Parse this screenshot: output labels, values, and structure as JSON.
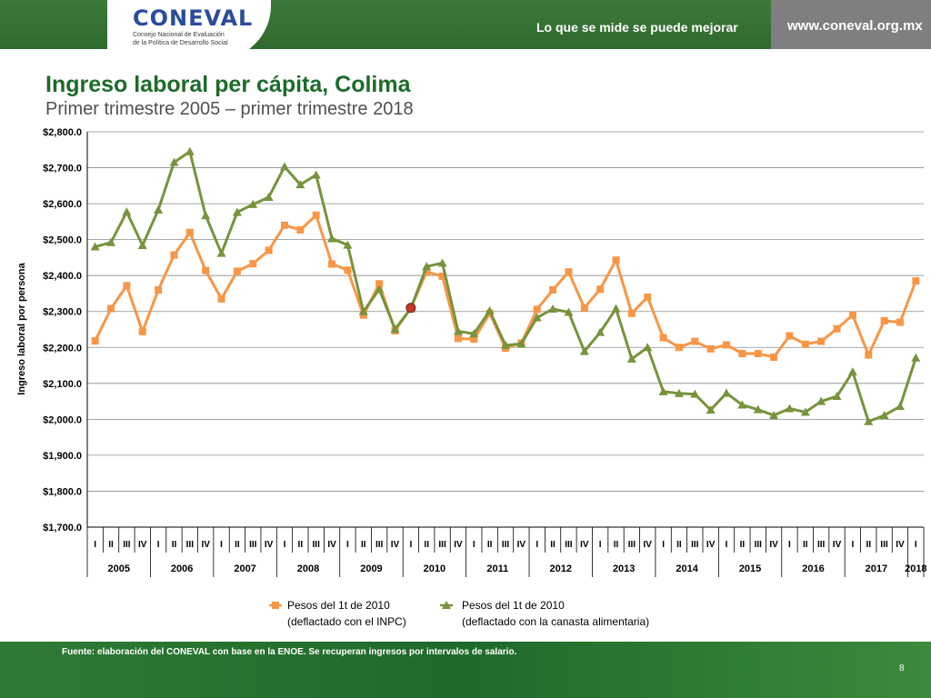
{
  "header": {
    "logo_text": "CONEVAL",
    "logo_sub1": "Consejo Nacional de Evaluación",
    "logo_sub2": "de la Política de Desarrollo Social",
    "tagline": "Lo que se mide se puede mejorar",
    "website": "www.coneval.org.mx"
  },
  "slide": {
    "source": "Fuente: elaboración del CONEVAL con base en la ENOE. Se recuperan ingresos por intervalos de salario.",
    "page_number": "8"
  },
  "colors": {
    "series_inpc": "#f79646",
    "series_canasta": "#77933c",
    "highlight_point": "#c0392b",
    "header_green": "#2f6a2e",
    "title_green": "#1d6b2a"
  },
  "chart_data": {
    "type": "line",
    "title": "Ingreso laboral per cápita, Colima",
    "subtitle": "Primer trimestre 2005 – primer trimestre 2018",
    "ylabel": "Ingreso laboral por persona",
    "ylim": [
      1700,
      2800
    ],
    "yticks": [
      "$1,700.0",
      "$1,800.0",
      "$1,900.0",
      "$2,000.0",
      "$2,100.0",
      "$2,200.0",
      "$2,300.0",
      "$2,400.0",
      "$2,500.0",
      "$2,600.0",
      "$2,700.0",
      "$2,800.0"
    ],
    "grid": true,
    "legend_position": "bottom",
    "quarter_labels": [
      "I",
      "II",
      "III",
      "IV"
    ],
    "years": [
      "2005",
      "2006",
      "2007",
      "2008",
      "2009",
      "2010",
      "2011",
      "2012",
      "2013",
      "2014",
      "2015",
      "2016",
      "2017",
      "2018"
    ],
    "series": [
      {
        "name": "Pesos del 1t de 2010",
        "name_line2": "(deflactado con el INPC)",
        "marker": "square",
        "values": [
          2218,
          2308,
          2372,
          2244,
          2360,
          2457,
          2520,
          2414,
          2335,
          2412,
          2433,
          2470,
          2540,
          2527,
          2568,
          2432,
          2415,
          2290,
          2377,
          2246,
          2310,
          2410,
          2398,
          2225,
          2223,
          2295,
          2198,
          2212,
          2306,
          2360,
          2410,
          2310,
          2362,
          2443,
          2295,
          2340,
          2227,
          2200,
          2217,
          2196,
          2207,
          2183,
          2183,
          2173,
          2232,
          2209,
          2217,
          2252,
          2290,
          2179,
          2274,
          2270,
          2385
        ]
      },
      {
        "name": "Pesos del 1t de 2010",
        "name_line2": "(deflactado con la canasta alimentaria)",
        "marker": "triangle",
        "values": [
          2480,
          2492,
          2577,
          2484,
          2583,
          2715,
          2745,
          2567,
          2462,
          2576,
          2598,
          2618,
          2703,
          2653,
          2680,
          2503,
          2485,
          2300,
          2362,
          2251,
          2308,
          2425,
          2435,
          2245,
          2238,
          2302,
          2206,
          2210,
          2283,
          2307,
          2298,
          2189,
          2242,
          2308,
          2168,
          2200,
          2077,
          2072,
          2070,
          2026,
          2073,
          2040,
          2027,
          2011,
          2030,
          2020,
          2050,
          2064,
          2132,
          1994,
          2011,
          2036,
          2171
        ]
      }
    ],
    "highlight": {
      "index": 20,
      "value": 2310
    }
  }
}
